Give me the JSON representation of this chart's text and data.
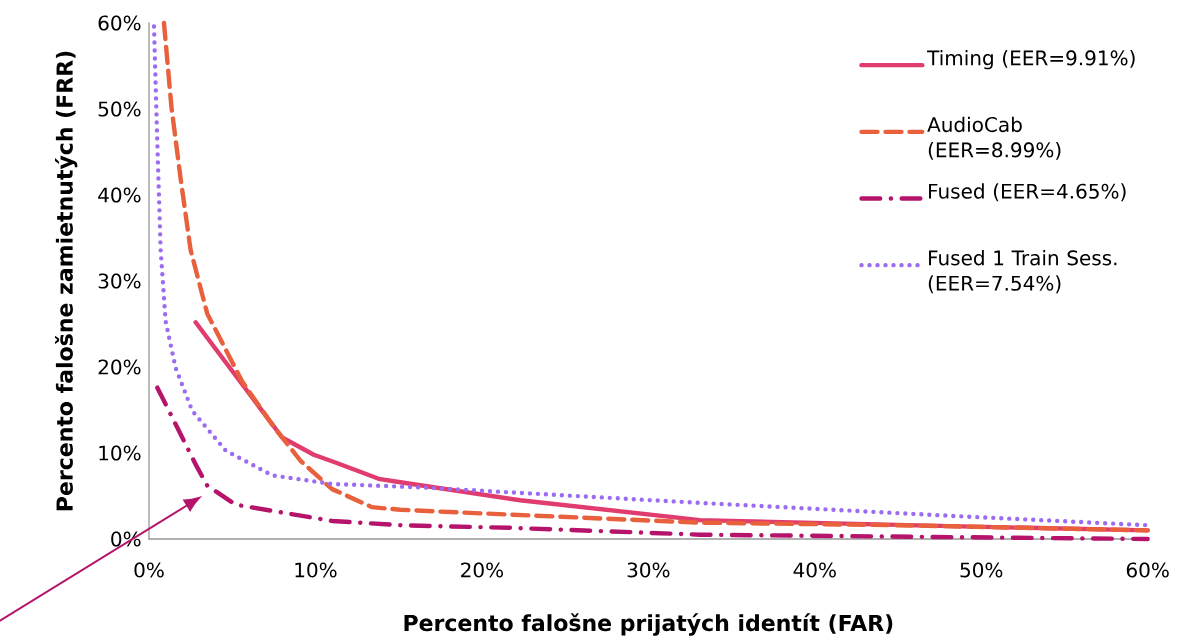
{
  "chart_data": {
    "type": "line",
    "xlabel": "Percento falošne prijatých identít (FAR)",
    "ylabel": "Percento falošne zamietnutých (FRR)",
    "xlim": [
      0,
      60
    ],
    "ylim": [
      0,
      60
    ],
    "xticks": [
      {
        "value": 0,
        "label": "0%"
      },
      {
        "value": 10,
        "label": "10%"
      },
      {
        "value": 20,
        "label": "20%"
      },
      {
        "value": 30,
        "label": "30%"
      },
      {
        "value": 40,
        "label": "40%"
      },
      {
        "value": 50,
        "label": "50%"
      },
      {
        "value": 60,
        "label": "60%"
      }
    ],
    "yticks": [
      {
        "value": 0,
        "label": "0%"
      },
      {
        "value": 10,
        "label": "10%"
      },
      {
        "value": 20,
        "label": "20%"
      },
      {
        "value": 30,
        "label": "30%"
      },
      {
        "value": 40,
        "label": "40%"
      },
      {
        "value": 50,
        "label": "50%"
      },
      {
        "value": 60,
        "label": "60%"
      }
    ],
    "grid": false,
    "legend": "top right",
    "marker": "none",
    "series": [
      {
        "name": "Timing (EER=9.91%)",
        "color": "#e03c6e",
        "line_style": "solid",
        "x": [
          2.8,
          8.0,
          9.9,
          11.2,
          13.8,
          15.1,
          22.3,
          33.1,
          48.1,
          60
        ],
        "values": [
          25.2,
          11.8,
          9.8,
          8.9,
          7.0,
          6.6,
          4.5,
          2.2,
          1.5,
          1.0
        ]
      },
      {
        "name": "AudioCab (EER=8.99%)",
        "color": "#e8603c",
        "line_style": "dashed",
        "x": [
          0.9,
          1.35,
          1.9,
          2.5,
          3.5,
          5.6,
          7.4,
          9.1,
          11.0,
          13.4,
          15.1,
          18.5,
          33.1,
          45.1,
          60
        ],
        "values": [
          60,
          50.2,
          41.9,
          33.6,
          26.2,
          18.3,
          13.3,
          9.1,
          5.8,
          3.7,
          3.4,
          3.1,
          1.9,
          1.6,
          1.0
        ]
      },
      {
        "name": "Fused (EER=4.65%)",
        "color": "#b5146a",
        "line_style": "dashdot",
        "x": [
          0.5,
          2.85,
          3.5,
          5.2,
          11.0,
          15.1,
          21.7,
          33.1,
          60
        ],
        "values": [
          17.6,
          8.5,
          6.2,
          4.0,
          2.1,
          1.6,
          1.3,
          0.5,
          0.0
        ]
      },
      {
        "name": "Fused 1 Train Sess. (EER=7.54%)",
        "color": "#9b6cf0",
        "line_style": "dotted",
        "x": [
          0.3,
          0.5,
          0.7,
          1.0,
          1.6,
          2.6,
          4.6,
          7.4,
          11.0,
          16.4,
          33.1,
          48.1,
          60
        ],
        "values": [
          59.6,
          46,
          33.6,
          25.3,
          19.9,
          14.9,
          10.3,
          7.4,
          6.4,
          6.0,
          4.2,
          2.7,
          1.6
        ]
      }
    ]
  }
}
